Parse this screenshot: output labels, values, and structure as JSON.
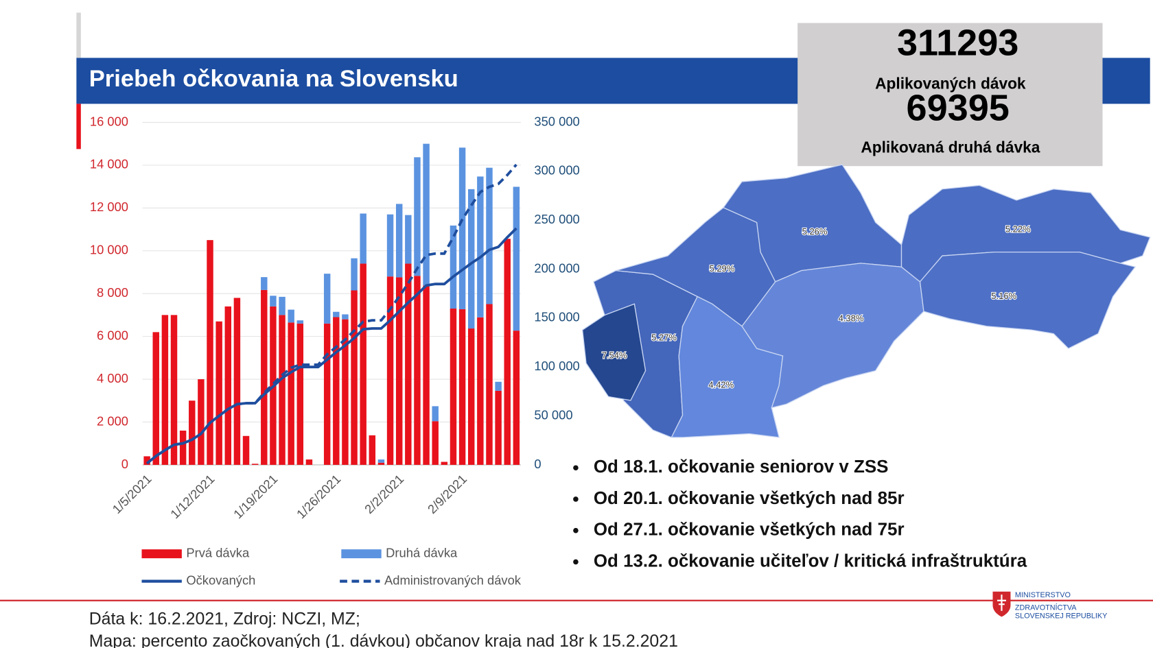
{
  "header": {
    "title": "Priebeh očkovania na Slovensku"
  },
  "stats": [
    {
      "value": "311293",
      "label": "Aplikovaných dávok"
    },
    {
      "value": "69395",
      "label": "Aplikovaná druhá dávka"
    }
  ],
  "chart_data": {
    "type": "bar",
    "stacked": true,
    "categories": [
      "1/5/2021",
      null,
      null,
      null,
      null,
      null,
      null,
      "1/12/2021",
      null,
      null,
      null,
      null,
      null,
      null,
      "1/19/2021",
      null,
      null,
      null,
      null,
      null,
      null,
      "1/26/2021",
      null,
      null,
      null,
      null,
      null,
      null,
      "2/2/2021",
      null,
      null,
      null,
      null,
      null,
      null,
      "2/9/2021",
      null,
      null,
      null,
      null,
      null,
      null
    ],
    "series": [
      {
        "name": "Prvá dávka",
        "type": "bar",
        "color": "#e8121c",
        "values": [
          400,
          6200,
          7000,
          7000,
          1600,
          3000,
          4000,
          10500,
          6700,
          7400,
          7800,
          1350,
          50,
          8170,
          7400,
          7000,
          6650,
          6600,
          250,
          0,
          6600,
          6900,
          6800,
          8150,
          9400,
          1380,
          100,
          8800,
          8760,
          9400,
          8830,
          8380,
          2040,
          140,
          7300,
          7270,
          6370,
          6890,
          7510,
          3460,
          10560,
          6270
        ]
      },
      {
        "name": "Druhá dávka",
        "type": "bar",
        "color": "#5b93e0",
        "values": [
          0,
          0,
          0,
          0,
          0,
          0,
          0,
          0,
          0,
          0,
          0,
          0,
          0,
          600,
          500,
          850,
          600,
          150,
          0,
          0,
          2330,
          250,
          230,
          1500,
          2340,
          0,
          150,
          2900,
          3430,
          2270,
          5540,
          6620,
          700,
          0,
          3880,
          7550,
          6510,
          6580,
          6370,
          420,
          0,
          6720
        ]
      },
      {
        "name": "Očkovaných",
        "type": "line",
        "axis": "y2",
        "color": "#1f4e9e",
        "dash": false,
        "values": [
          1500,
          9000,
          15000,
          20500,
          22000,
          25700,
          31800,
          43000,
          50000,
          57000,
          62000,
          63000,
          63000,
          72000,
          80000,
          88600,
          94700,
          100000,
          100000,
          100000,
          107600,
          115000,
          122000,
          129500,
          138600,
          139400,
          139400,
          147700,
          156800,
          165900,
          174200,
          183300,
          184800,
          184800,
          192400,
          199200,
          206000,
          212100,
          219700,
          222700,
          232600,
          241700
        ]
      },
      {
        "name": "Administrovaných dávok",
        "type": "line",
        "axis": "y2",
        "color": "#1f4e9e",
        "dash": true,
        "values": [
          1500,
          9000,
          15000,
          20500,
          22000,
          25700,
          31800,
          43000,
          50000,
          57000,
          62000,
          63000,
          63000,
          73500,
          82600,
          91700,
          99200,
          102300,
          102300,
          102300,
          112900,
          120500,
          128000,
          137100,
          146200,
          147700,
          147700,
          159100,
          172000,
          185600,
          200800,
          214400,
          215900,
          215900,
          232600,
          250800,
          265200,
          278800,
          284100,
          287100,
          296200,
          306800
        ]
      }
    ],
    "ylim": [
      0,
      16000
    ],
    "yticks": [
      0,
      {
        "value": 2000,
        "label": "2 000"
      },
      {
        "value": 4000,
        "label": "4 000"
      },
      {
        "value": 6000,
        "label": "6 000"
      },
      {
        "value": 8000,
        "label": "8 000"
      },
      {
        "value": 10000,
        "label": "10 000"
      },
      {
        "value": 12000,
        "label": "12 000"
      },
      {
        "value": 14000,
        "label": "14 000"
      },
      {
        "value": 16000,
        "label": "16 000"
      }
    ],
    "y2lim": [
      0,
      350000
    ],
    "y2ticks": [
      0,
      {
        "value": 50000,
        "label": "50 000"
      },
      {
        "value": 100000,
        "label": "100 000"
      },
      {
        "value": 150000,
        "label": "150 000"
      },
      {
        "value": 200000,
        "label": "200 000"
      },
      {
        "value": 250000,
        "label": "250 000"
      },
      {
        "value": 300000,
        "label": "300 000"
      },
      {
        "value": 350000,
        "label": "350 000"
      }
    ],
    "grid": true,
    "legend": "bottom"
  },
  "map": {
    "labels": [
      "7.54%",
      "5.27%",
      "5.29%",
      "4.42%",
      "5.26%",
      "4.38%",
      "5.22%",
      "5.16%"
    ]
  },
  "bullets": [
    "Od 18.1. očkovanie seniorov v ZSS",
    "Od 20.1. očkovanie všetkých nad 85r",
    "Od 27.1. očkovanie všetkých nad 75r",
    "Od 13.2. očkovanie učiteľov / kritická infraštruktúra"
  ],
  "footer": [
    "Dáta k: 16.2.2021, Zdroj: NCZI, MZ;",
    "Mapa: percento zaočkovaných (1. dávkou) občanov kraja nad 18r k 15.2.2021"
  ],
  "logo": [
    "MINISTERSTVO",
    "ZDRAVOTNÍCTVA",
    "SLOVENSKEJ REPUBLIKY"
  ]
}
